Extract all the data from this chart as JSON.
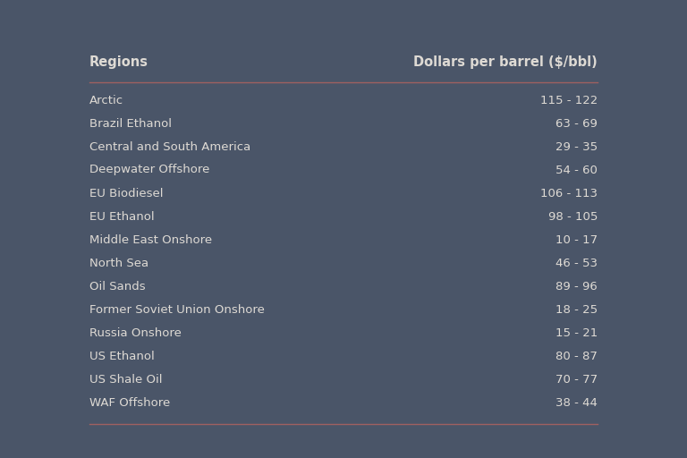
{
  "background_color": "#4a5568",
  "text_color": "#dedad4",
  "header_color": "#dedad4",
  "line_color": "#a06060",
  "col1_header": "Regions",
  "col2_header": "Dollars per barrel ($/bbl)",
  "rows": [
    [
      "Arctic",
      "115 - 122"
    ],
    [
      "Brazil Ethanol",
      "63 - 69"
    ],
    [
      "Central and South America",
      "29 - 35"
    ],
    [
      "Deepwater Offshore",
      "54 - 60"
    ],
    [
      "EU Biodiesel",
      "106 - 113"
    ],
    [
      "EU Ethanol",
      "98 - 105"
    ],
    [
      "Middle East Onshore",
      "10 - 17"
    ],
    [
      "North Sea",
      "46 - 53"
    ],
    [
      "Oil Sands",
      "89 - 96"
    ],
    [
      "Former Soviet Union Onshore",
      "18 - 25"
    ],
    [
      "Russia Onshore",
      "15 - 21"
    ],
    [
      "US Ethanol",
      "80 - 87"
    ],
    [
      "US Shale Oil",
      "70 - 77"
    ],
    [
      "WAF Offshore",
      "38 - 44"
    ]
  ],
  "header_font_size": 10.5,
  "row_font_size": 9.5,
  "header_font_weight": "bold",
  "row_font_weight": "normal",
  "fig_width": 7.68,
  "fig_height": 5.12,
  "dpi": 100
}
